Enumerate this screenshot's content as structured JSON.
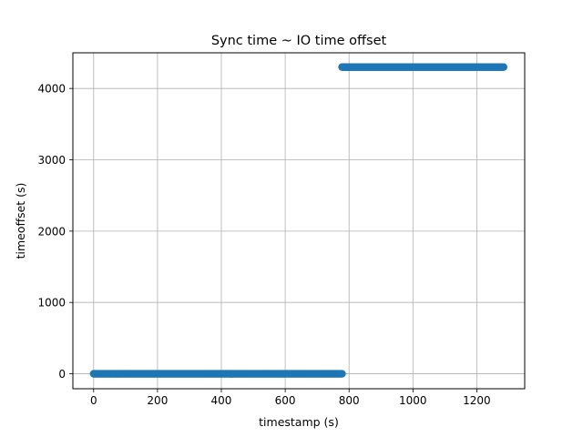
{
  "chart_data": {
    "type": "scatter",
    "title": "Sync time ~ IO time offset",
    "xlabel": "timestamp (s)",
    "ylabel": "timeoffset (s)",
    "xlim": [
      -65,
      1350
    ],
    "ylim": [
      -210,
      4500
    ],
    "xticks": [
      0,
      200,
      400,
      600,
      800,
      1000,
      1200
    ],
    "yticks": [
      0,
      1000,
      2000,
      3000,
      4000
    ],
    "grid": true,
    "legend": "none",
    "marker_color": "#1f77b4",
    "series": [
      {
        "segments": [
          {
            "x_start": 0,
            "x_end": 778,
            "y": 0
          },
          {
            "x_start": 778,
            "x_end": 1285,
            "y": 4300
          }
        ]
      }
    ]
  }
}
